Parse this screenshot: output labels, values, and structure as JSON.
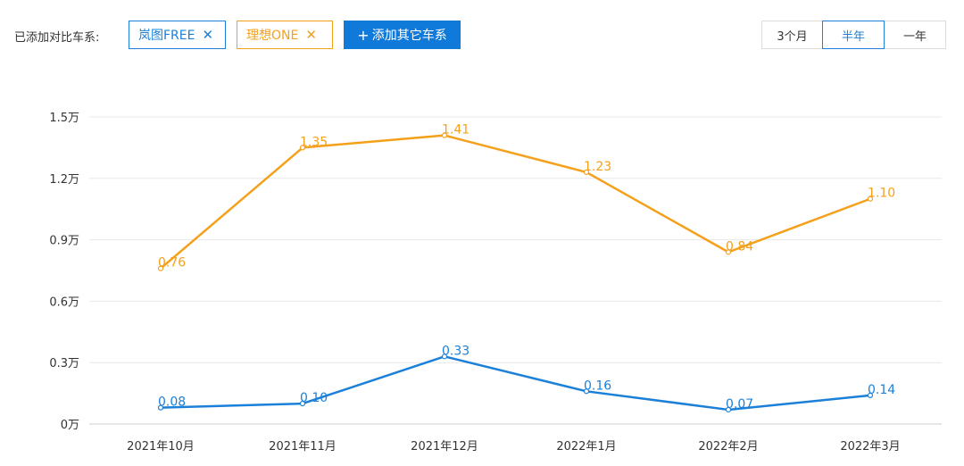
{
  "toolbar": {
    "compare_label": "已添加对比车系:",
    "tags": [
      {
        "label": "岚图FREE",
        "color": "#1c80d8"
      },
      {
        "label": "理想ONE",
        "color": "#f5a01a"
      }
    ],
    "close_glyph": "✕",
    "add_label": "添加其它车系",
    "add_icon": "plus-icon",
    "ranges": [
      "3个月",
      "半年",
      "一年"
    ],
    "active_range": "半年"
  },
  "chart_data": {
    "type": "line",
    "categories": [
      "2021年10月",
      "2021年11月",
      "2021年12月",
      "2022年1月",
      "2022年2月",
      "2022年3月"
    ],
    "series": [
      {
        "color": "#f5a01a",
        "values": [
          0.76,
          1.35,
          1.41,
          1.23,
          0.84,
          1.1
        ],
        "labels": [
          "0.76",
          "1.35",
          "1.41",
          "1.23",
          "0.84",
          "1.10"
        ]
      },
      {
        "color": "#1c80d8",
        "values": [
          0.08,
          0.1,
          0.33,
          0.16,
          0.07,
          0.14
        ],
        "labels": [
          "0.08",
          "0.10",
          "0.33",
          "0.16",
          "0.07",
          "0.14"
        ]
      }
    ],
    "yticks": [
      "0万",
      "0.3万",
      "0.6万",
      "0.9万",
      "1.2万",
      "1.5万"
    ],
    "ylim": [
      0,
      1.5
    ],
    "grid": true,
    "legend": "none"
  }
}
